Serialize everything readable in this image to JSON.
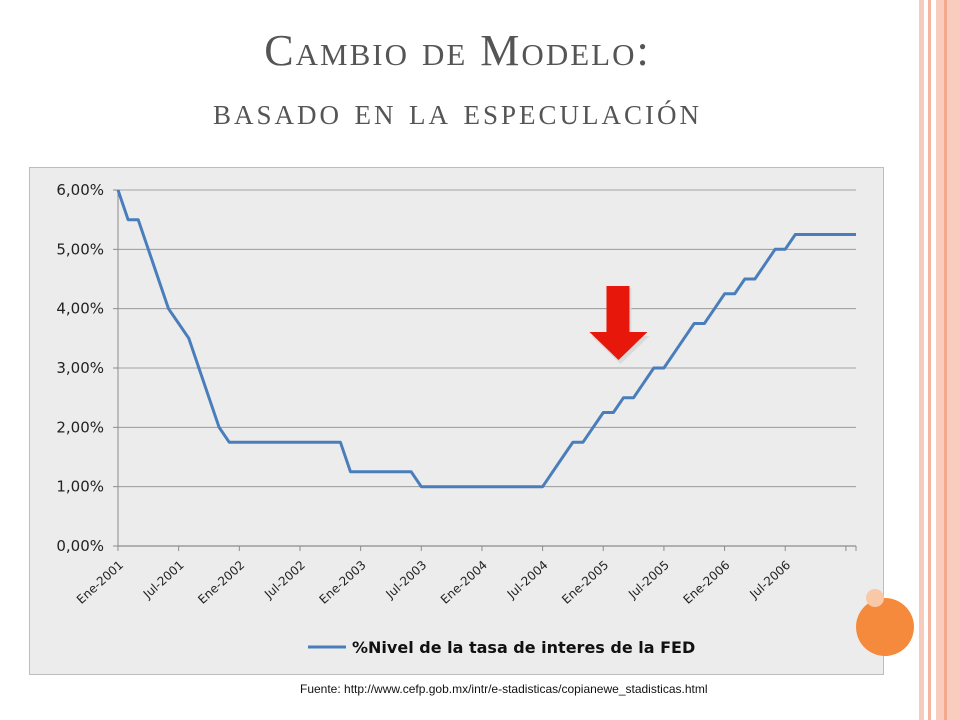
{
  "slide": {
    "title_line1": "Cambio de Modelo:",
    "title_line2": "basado en la especulación",
    "source": "Fuente: http://www.cefp.gob.mx/intr/e-stadisticas/copianewe_stadisticas.html"
  },
  "colors": {
    "title": "#555555",
    "line": "#4a7ebb",
    "arrow": "#e8170b",
    "accent_orange": "#f58a3c",
    "stripe": "#f4b6a0"
  },
  "chart_data": {
    "type": "line",
    "title": "",
    "xlabel": "",
    "ylabel": "",
    "ylim": [
      0,
      6
    ],
    "y_ticks": [
      "0,00%",
      "1,00%",
      "2,00%",
      "3,00%",
      "4,00%",
      "5,00%",
      "6,00%"
    ],
    "x_tick_labels": [
      "Ene-2001",
      "Jul-2001",
      "Ene-2002",
      "Jul-2002",
      "Ene-2003",
      "Jul-2003",
      "Ene-2004",
      "Jul-2004",
      "Ene-2005",
      "Jul-2005",
      "Ene-2006",
      "Jul-2006"
    ],
    "grid": true,
    "legend": "bottom",
    "series": [
      {
        "name": "%Nivel de la tasa de interes de la FED",
        "values": [
          6.0,
          5.5,
          5.5,
          5.0,
          4.5,
          4.0,
          3.75,
          3.5,
          3.0,
          2.5,
          2.0,
          1.75,
          1.75,
          1.75,
          1.75,
          1.75,
          1.75,
          1.75,
          1.75,
          1.75,
          1.75,
          1.75,
          1.75,
          1.25,
          1.25,
          1.25,
          1.25,
          1.25,
          1.25,
          1.25,
          1.0,
          1.0,
          1.0,
          1.0,
          1.0,
          1.0,
          1.0,
          1.0,
          1.0,
          1.0,
          1.0,
          1.0,
          1.0,
          1.25,
          1.5,
          1.75,
          1.75,
          2.0,
          2.25,
          2.25,
          2.5,
          2.5,
          2.75,
          3.0,
          3.0,
          3.25,
          3.5,
          3.75,
          3.75,
          4.0,
          4.25,
          4.25,
          4.5,
          4.5,
          4.75,
          5.0,
          5.0,
          5.25,
          5.25,
          5.25,
          5.25,
          5.25,
          5.25,
          5.25
        ]
      }
    ],
    "annotations": [
      {
        "type": "arrow-down",
        "x_month_index": 50,
        "color": "#e8170b"
      }
    ]
  }
}
